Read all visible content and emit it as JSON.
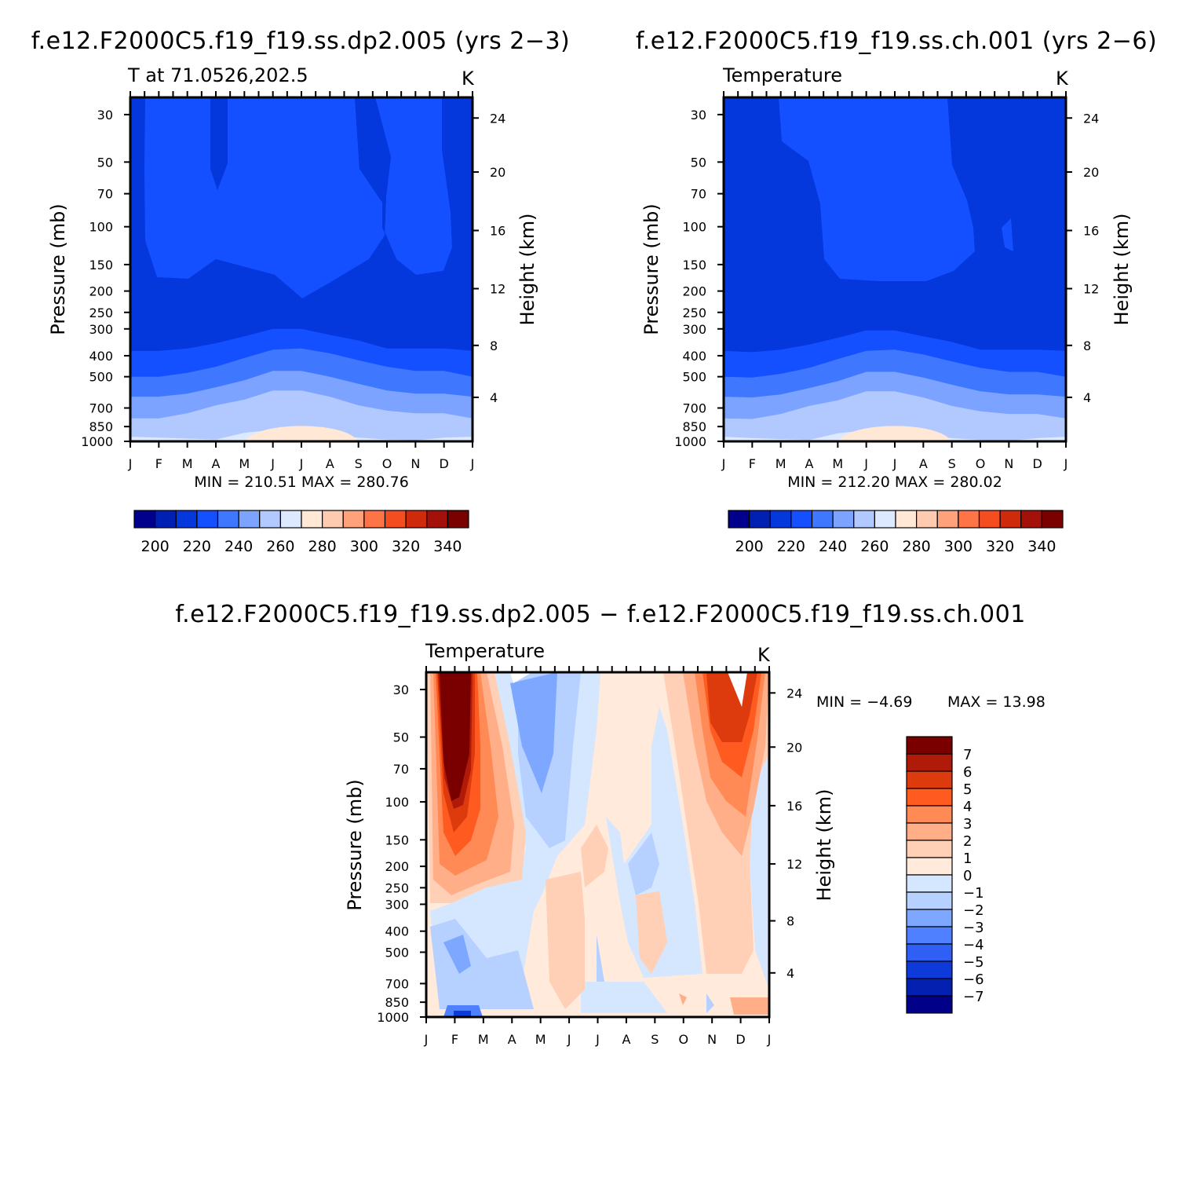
{
  "colors": {
    "temp_scale": [
      "#00008c",
      "#0020b4",
      "#0437dc",
      "#1450ff",
      "#3f78ff",
      "#7ca3ff",
      "#b2c9ff",
      "#dde9ff",
      "#ffe8d6",
      "#ffcbb0",
      "#ffa17a",
      "#ff7447",
      "#f44d20",
      "#d02a0c",
      "#a4100a",
      "#7a0000"
    ],
    "diff_scale": [
      "#7a0000",
      "#b01a08",
      "#dd3a0d",
      "#ff5a20",
      "#ff8a55",
      "#ffae88",
      "#ffcfb6",
      "#ffeadc",
      "#d5e6ff",
      "#b6d0ff",
      "#7ea7ff",
      "#4f80ff",
      "#2f5ff4",
      "#0d3ad8",
      "#0420b0",
      "#000088"
    ]
  },
  "chart_data": [
    {
      "type": "heatmap",
      "title": "f.e12.F2000C5.f19_f19.ss.dp2.005 (yrs 2−3)",
      "subtitle": "T at 71.0526,202.5",
      "units": "K",
      "stats": "MIN = 210.51 MAX = 280.76",
      "xlabel": "",
      "ylabel": "Pressure (mb)",
      "ylabel_right": "Height (km)",
      "x_ticks": [
        "J",
        "F",
        "M",
        "A",
        "M",
        "J",
        "J",
        "A",
        "S",
        "O",
        "N",
        "D",
        "J"
      ],
      "pressure_ticks": [
        "30",
        "50",
        "70",
        "100",
        "150",
        "200",
        "250",
        "300",
        "400",
        "500",
        "700",
        "850",
        "1000"
      ],
      "height_ticks": [
        "24",
        "20",
        "16",
        "12",
        "8",
        "4"
      ],
      "colorbar_labels": [
        "200",
        "220",
        "240",
        "260",
        "280",
        "300",
        "320",
        "340"
      ],
      "band_tops_pressure_mb": {
        "band_5_to_4": [
          950,
          960,
          970,
          980,
          910,
          880,
          890,
          930,
          960,
          980,
          990,
          960,
          950
        ],
        "band_6_to_5": [
          780,
          780,
          740,
          680,
          640,
          580,
          580,
          620,
          680,
          720,
          740,
          740,
          780
        ],
        "band_7_to_6": [
          620,
          620,
          600,
          560,
          520,
          470,
          470,
          500,
          540,
          580,
          600,
          600,
          620
        ],
        "band_8_to_7": [
          500,
          500,
          480,
          450,
          410,
          375,
          370,
          390,
          420,
          450,
          470,
          470,
          500
        ],
        "band_9_to_8": [
          380,
          380,
          370,
          350,
          325,
          300,
          300,
          320,
          340,
          370,
          370,
          370,
          380
        ]
      }
    },
    {
      "type": "heatmap",
      "title": "f.e12.F2000C5.f19_f19.ss.ch.001 (yrs 2−6)",
      "subtitle": "Temperature",
      "units": "K",
      "stats": "MIN = 212.20 MAX = 280.02",
      "xlabel": "",
      "ylabel": "Pressure (mb)",
      "ylabel_right": "Height (km)",
      "x_ticks": [
        "J",
        "F",
        "M",
        "A",
        "M",
        "J",
        "J",
        "A",
        "S",
        "O",
        "N",
        "D",
        "J"
      ],
      "pressure_ticks": [
        "30",
        "50",
        "70",
        "100",
        "150",
        "200",
        "250",
        "300",
        "400",
        "500",
        "700",
        "850",
        "1000"
      ],
      "height_ticks": [
        "24",
        "20",
        "16",
        "12",
        "8",
        "4"
      ],
      "colorbar_labels": [
        "200",
        "220",
        "240",
        "260",
        "280",
        "300",
        "320",
        "340"
      ]
    },
    {
      "type": "heatmap",
      "title": "f.e12.F2000C5.f19_f19.ss.dp2.005 − f.e12.F2000C5.f19_f19.ss.ch.001",
      "subtitle": "Temperature",
      "units": "K",
      "stats_min": "MIN =   −4.69",
      "stats_max": "MAX =   13.98",
      "xlabel": "",
      "ylabel": "Pressure (mb)",
      "ylabel_right": "Height (km)",
      "x_ticks": [
        "J",
        "F",
        "M",
        "A",
        "M",
        "J",
        "J",
        "A",
        "S",
        "O",
        "N",
        "D",
        "J"
      ],
      "pressure_ticks": [
        "30",
        "50",
        "70",
        "100",
        "150",
        "200",
        "250",
        "300",
        "400",
        "500",
        "700",
        "850",
        "1000"
      ],
      "height_ticks": [
        "24",
        "20",
        "16",
        "12",
        "8",
        "4"
      ],
      "colorbar_labels": [
        "7",
        "6",
        "5",
        "4",
        "3",
        "2",
        "1",
        "0",
        "−1",
        "−2",
        "−3",
        "−4",
        "−5",
        "−6",
        "−7"
      ]
    }
  ]
}
